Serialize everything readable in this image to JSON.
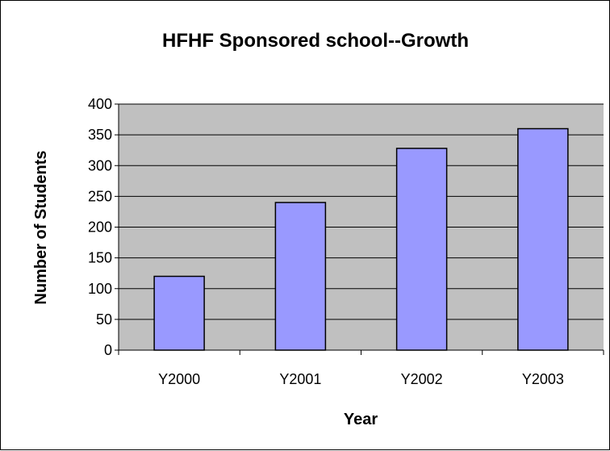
{
  "chart_data": {
    "type": "bar",
    "title": "HFHF Sponsored school--Growth",
    "xlabel": "Year",
    "ylabel": "Number of Students",
    "categories": [
      "Y2000",
      "Y2001",
      "Y2002",
      "Y2003"
    ],
    "values": [
      120,
      240,
      328,
      360
    ],
    "ylim": [
      0,
      400
    ],
    "yticks": [
      "0",
      "50",
      "100",
      "150",
      "200",
      "250",
      "300",
      "350",
      "400"
    ],
    "grid": true,
    "legend": "none",
    "colors": {
      "plot_background": "#c0c0c0",
      "bar_fill": "#9999ff",
      "bar_stroke": "#000000",
      "gridline": "#000000"
    }
  }
}
